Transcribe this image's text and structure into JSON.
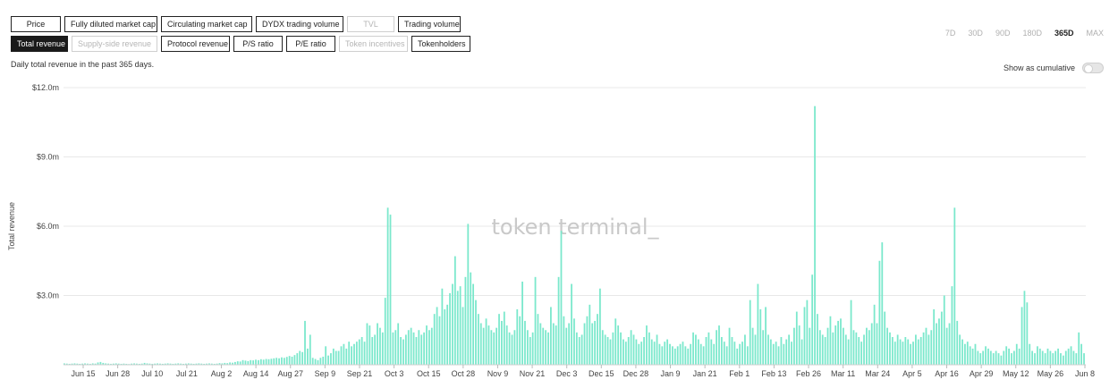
{
  "metric_tabs_row1": [
    {
      "label": "Price",
      "state": "normal",
      "w": "w-price"
    },
    {
      "label": "Fully diluted market cap",
      "state": "normal",
      "w": "w-fdmc"
    },
    {
      "label": "Circulating market cap",
      "state": "normal",
      "w": "w-cmc"
    },
    {
      "label": "DYDX trading volume",
      "state": "normal",
      "w": "w-dydx"
    },
    {
      "label": "TVL",
      "state": "disabled",
      "w": "w-tvl"
    },
    {
      "label": "Trading volume",
      "state": "normal",
      "w": "w-tv"
    }
  ],
  "metric_tabs_row2": [
    {
      "label": "Total revenue",
      "state": "active",
      "w": "w-tr"
    },
    {
      "label": "Supply-side revenue",
      "state": "disabled",
      "w": "w-ssr"
    },
    {
      "label": "Protocol revenue",
      "state": "normal",
      "w": "w-pr"
    },
    {
      "label": "P/S ratio",
      "state": "normal",
      "w": "w-ps"
    },
    {
      "label": "P/E ratio",
      "state": "normal",
      "w": "w-pe"
    },
    {
      "label": "Token incentives",
      "state": "disabled",
      "w": "w-ti"
    },
    {
      "label": "Tokenholders",
      "state": "normal",
      "w": "w-th"
    }
  ],
  "time_ranges": [
    "7D",
    "30D",
    "90D",
    "180D",
    "365D",
    "MAX"
  ],
  "active_range": "365D",
  "subtitle": "Daily total revenue in the past 365 days.",
  "cumulative_label": "Show as cumulative",
  "cumulative_on": false,
  "watermark": "token terminal_",
  "colors": {
    "bar": "#7be8cc",
    "grid": "#e8e8e8",
    "accent": "#1a1a1a"
  },
  "chart_data": {
    "type": "bar",
    "ylabel": "Total revenue",
    "ylim": [
      0,
      12.0
    ],
    "y_unit": "$M",
    "y_ticks": [
      {
        "v": 12,
        "label": "$12.0m"
      },
      {
        "v": 9,
        "label": "$9.0m"
      },
      {
        "v": 6,
        "label": "$6.0m"
      },
      {
        "v": 3,
        "label": "$3.0m"
      }
    ],
    "x_ticks": [
      "Jun 15",
      "Jun 28",
      "Jul 10",
      "Jul 21",
      "Aug 2",
      "Aug 14",
      "Aug 27",
      "Sep 9",
      "Sep 21",
      "Oct 3",
      "Oct 15",
      "Oct 28",
      "Nov 9",
      "Nov 21",
      "Dec 3",
      "Dec 15",
      "Dec 28",
      "Jan 9",
      "Jan 21",
      "Feb 1",
      "Feb 13",
      "Feb 26",
      "Mar 11",
      "Mar 24",
      "Apr 5",
      "Apr 16",
      "Apr 29",
      "May 12",
      "May 26",
      "Jun 8"
    ],
    "values": [
      0.06,
      0.05,
      0.04,
      0.05,
      0.06,
      0.05,
      0.04,
      0.05,
      0.06,
      0.05,
      0.04,
      0.06,
      0.05,
      0.1,
      0.12,
      0.08,
      0.06,
      0.05,
      0.04,
      0.05,
      0.06,
      0.05,
      0.04,
      0.05,
      0.04,
      0.03,
      0.05,
      0.06,
      0.05,
      0.04,
      0.05,
      0.08,
      0.06,
      0.05,
      0.04,
      0.05,
      0.06,
      0.05,
      0.04,
      0.05,
      0.06,
      0.05,
      0.04,
      0.05,
      0.06,
      0.05,
      0.04,
      0.05,
      0.06,
      0.05,
      0.04,
      0.05,
      0.06,
      0.05,
      0.04,
      0.05,
      0.06,
      0.05,
      0.04,
      0.05,
      0.07,
      0.06,
      0.08,
      0.07,
      0.1,
      0.09,
      0.12,
      0.15,
      0.14,
      0.2,
      0.18,
      0.16,
      0.2,
      0.19,
      0.22,
      0.2,
      0.24,
      0.22,
      0.25,
      0.24,
      0.26,
      0.28,
      0.3,
      0.28,
      0.32,
      0.3,
      0.34,
      0.38,
      0.35,
      0.42,
      0.5,
      0.6,
      0.55,
      1.9,
      0.7,
      1.3,
      0.3,
      0.25,
      0.2,
      0.3,
      0.35,
      0.8,
      0.4,
      0.5,
      0.7,
      0.6,
      0.6,
      0.8,
      0.9,
      0.7,
      1.0,
      0.8,
      0.9,
      1.0,
      1.1,
      1.2,
      1.0,
      1.8,
      1.7,
      1.2,
      1.3,
      1.8,
      1.6,
      1.4,
      2.9,
      6.8,
      6.5,
      1.4,
      1.5,
      1.8,
      1.2,
      1.1,
      1.3,
      1.5,
      1.6,
      1.4,
      1.2,
      1.5,
      1.3,
      1.4,
      1.7,
      1.5,
      1.6,
      2.2,
      2.5,
      2.1,
      3.3,
      2.4,
      2.6,
      3.1,
      3.5,
      4.7,
      3.2,
      3.4,
      2.5,
      3.8,
      6.1,
      4.0,
      3.5,
      2.8,
      2.2,
      1.8,
      1.6,
      2.0,
      1.7,
      1.5,
      1.4,
      1.6,
      2.2,
      1.9,
      2.3,
      1.7,
      1.4,
      1.3,
      1.5,
      2.4,
      2.1,
      3.6,
      1.9,
      1.5,
      1.2,
      1.4,
      3.8,
      2.2,
      1.8,
      1.6,
      1.5,
      1.4,
      2.5,
      1.8,
      1.7,
      3.8,
      5.8,
      2.1,
      1.6,
      1.8,
      3.5,
      2.0,
      1.4,
      1.2,
      1.3,
      1.8,
      2.1,
      2.6,
      1.8,
      1.9,
      2.2,
      3.3,
      1.5,
      1.3,
      1.2,
      1.1,
      1.4,
      2.0,
      1.7,
      1.4,
      1.1,
      1.0,
      1.2,
      1.5,
      1.3,
      1.1,
      0.9,
      1.0,
      1.2,
      1.7,
      1.4,
      1.1,
      1.0,
      1.3,
      0.9,
      0.8,
      1.0,
      1.1,
      0.9,
      0.8,
      0.7,
      0.8,
      0.9,
      1.0,
      0.8,
      0.7,
      0.9,
      1.4,
      1.3,
      1.1,
      0.9,
      0.8,
      1.2,
      1.4,
      1.1,
      0.9,
      1.5,
      1.7,
      1.2,
      1.0,
      0.8,
      1.6,
      1.2,
      1.0,
      0.7,
      0.9,
      1.0,
      1.3,
      0.8,
      2.8,
      1.6,
      1.3,
      3.5,
      2.4,
      1.5,
      2.5,
      1.3,
      1.1,
      0.9,
      1.0,
      0.8,
      1.2,
      0.9,
      1.1,
      1.3,
      1.0,
      1.6,
      2.3,
      1.7,
      1.1,
      2.5,
      2.8,
      1.6,
      3.9,
      11.2,
      2.2,
      1.5,
      1.3,
      1.2,
      1.6,
      2.1,
      1.4,
      1.7,
      1.9,
      2.0,
      1.6,
      1.3,
      1.1,
      2.8,
      1.5,
      1.4,
      1.2,
      1.0,
      1.3,
      1.6,
      1.5,
      1.8,
      2.6,
      1.8,
      4.5,
      5.3,
      2.3,
      1.6,
      1.4,
      1.2,
      1.0,
      1.3,
      1.1,
      1.0,
      1.2,
      1.1,
      0.9,
      1.0,
      1.3,
      1.1,
      1.2,
      1.4,
      1.6,
      1.3,
      1.5,
      2.4,
      1.8,
      2.0,
      2.3,
      3.0,
      1.6,
      1.8,
      3.4,
      6.8,
      1.9,
      1.3,
      1.1,
      0.9,
      1.0,
      0.8,
      0.7,
      0.9,
      0.6,
      0.5,
      0.6,
      0.8,
      0.7,
      0.6,
      0.5,
      0.6,
      0.5,
      0.4,
      0.6,
      0.8,
      0.7,
      0.5,
      0.6,
      0.9,
      0.7,
      2.5,
      3.2,
      2.7,
      0.9,
      0.6,
      0.5,
      0.8,
      0.7,
      0.6,
      0.5,
      0.7,
      0.6,
      0.5,
      0.6,
      0.7,
      0.5,
      0.4,
      0.6,
      0.7,
      0.8,
      0.6,
      0.5,
      1.4,
      0.9,
      0.5
    ]
  }
}
